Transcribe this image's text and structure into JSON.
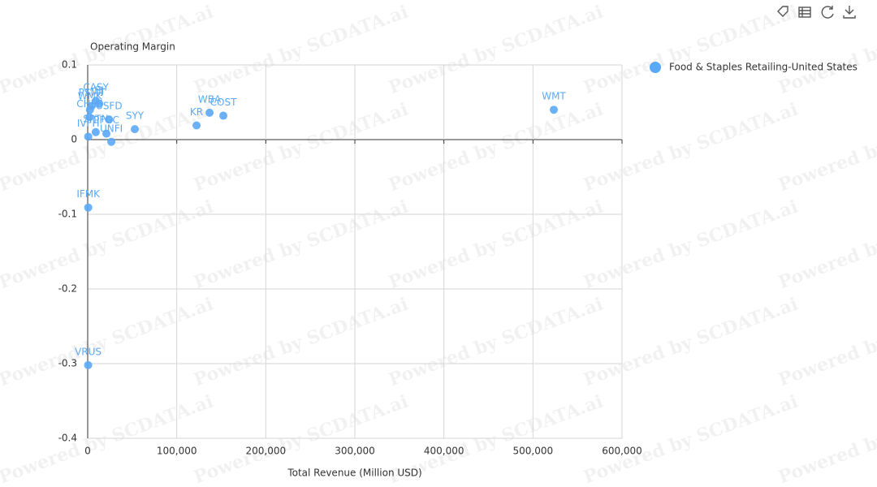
{
  "chart_data": {
    "type": "scatter",
    "watermark": "Powered by SCDATA.ai",
    "y_label": "Operating Margin",
    "x_label": "Total Revenue (Million USD)",
    "xlim": [
      0,
      600000
    ],
    "ylim": [
      -0.4,
      0.1
    ],
    "xticks": [
      0,
      {
        "value": 100000,
        "label": "100,000"
      },
      {
        "value": 200000,
        "label": "200,000"
      },
      {
        "value": 300000,
        "label": "300,000"
      },
      {
        "value": 400000,
        "label": "400,000"
      },
      {
        "value": 500000,
        "label": "500,000"
      },
      {
        "value": 600000,
        "label": "600,000"
      }
    ],
    "yticks": [
      0.1,
      0,
      -0.1,
      -0.2,
      -0.3,
      -0.4
    ],
    "grid": true,
    "legend": "top-right",
    "series": [
      {
        "name": "Food & Staples Retailing-United States",
        "color": "#5aa9f7",
        "labels": [
          "WMT",
          "COST",
          "WBA",
          "KR",
          "SYY",
          "CASY",
          "PSMT",
          "BJ",
          "USFD",
          "PFGC",
          "UNFI",
          "SPTN",
          "CHEF",
          "WMK",
          "IVFH",
          "IFMK",
          "VRUS"
        ],
        "x": [
          523400,
          152300,
          136800,
          122200,
          52900,
          9200,
          4500,
          12900,
          24000,
          21000,
          26500,
          9000,
          2000,
          2500,
          600,
          600,
          500
        ],
        "values": [
          0.04,
          0.032,
          0.036,
          0.019,
          0.014,
          0.052,
          0.045,
          0.048,
          0.027,
          0.008,
          -0.003,
          0.01,
          0.03,
          0.04,
          0.004,
          -0.091,
          -0.302
        ]
      }
    ]
  }
}
